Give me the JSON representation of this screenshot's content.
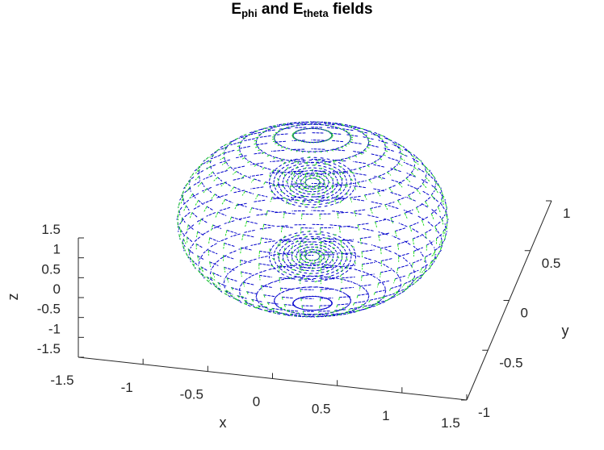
{
  "chart_data": {
    "type": "quiver3d",
    "title": {
      "parts": [
        {
          "text": "E",
          "sub": false
        },
        {
          "text": "phi",
          "sub": true
        },
        {
          "text": " and E",
          "sub": false
        },
        {
          "text": "theta",
          "sub": true
        },
        {
          "text": " fields",
          "sub": false
        }
      ]
    },
    "xlabel": "x",
    "ylabel": "y",
    "zlabel": "z",
    "xlim": [
      -1.5,
      1.5
    ],
    "ylim": [
      -1,
      1
    ],
    "zlim": [
      -1.5,
      1.5
    ],
    "xticks": [
      "-1.5",
      "-1",
      "-0.5",
      "0",
      "0.5",
      "1",
      "1.5"
    ],
    "yticks": [
      "-1",
      "-0.5",
      "0",
      "0.5",
      "1"
    ],
    "zticks": [
      "-1.5",
      "-1",
      "-0.5",
      "0",
      "0.5",
      "1",
      "1.5"
    ],
    "series": [
      {
        "component": "E_phi",
        "color": "#0000cc",
        "marker": "dashed arrows"
      },
      {
        "component": "E_theta",
        "color": "#22dd22",
        "marker": "dashed arrows"
      }
    ],
    "surface": {
      "shape": "sphere",
      "radius": 1
    },
    "grid": false,
    "legend": "none"
  }
}
